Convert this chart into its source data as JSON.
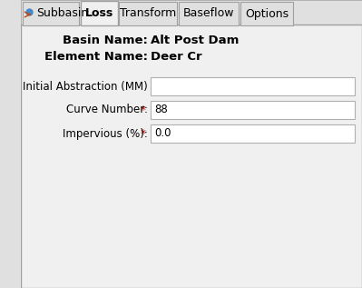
{
  "bg_color": "#e0e0e0",
  "tab_bg": "#e0e0e0",
  "tab_active_bg": "#f0f0f0",
  "tab_border": "#a0a0a0",
  "tabs": [
    "Subbasin",
    "Loss",
    "Transform",
    "Baseflow",
    "Options"
  ],
  "active_tab": 1,
  "basin_name_label": "Basin Name:",
  "basin_name_value": "Alt Post Dam",
  "element_name_label": "Element Name:",
  "element_name_value": "Deer Cr",
  "fields": [
    {
      "label": "Initial Abstraction (MM)",
      "value": "",
      "required": false
    },
    {
      "label": "Curve Number:",
      "value": "88",
      "required": true
    },
    {
      "label": "Impervious (%):",
      "value": "0.0",
      "required": true
    }
  ],
  "required_color": "#cc0000",
  "label_color": "#000000",
  "bold_color": "#000000",
  "input_bg": "#ffffff",
  "input_border": "#b0b0b0",
  "text_fontsize": 8.5,
  "bold_fontsize": 9.5,
  "tab_fontsize": 9.0,
  "panel_border": "#a0a0a0"
}
